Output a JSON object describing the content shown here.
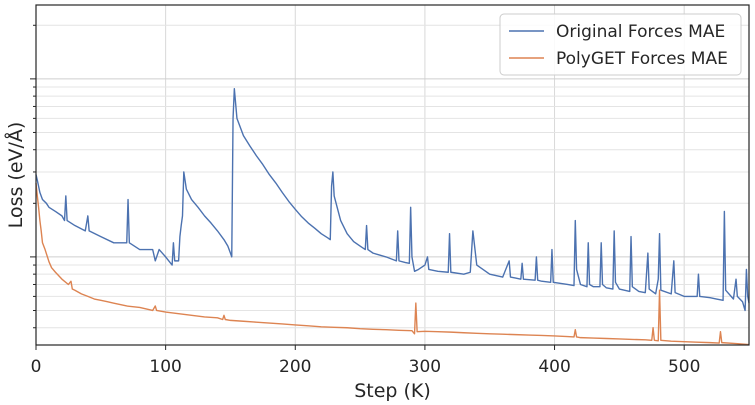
{
  "chart_data": {
    "type": "line",
    "title": "",
    "xlabel": "Step (K)",
    "ylabel": "Loss (eV/Å)",
    "x_ticks": [
      0,
      100,
      200,
      300,
      400,
      500
    ],
    "xlim": [
      0,
      550
    ],
    "y_scale": "log",
    "ylim": [
      0.032,
      2.6
    ],
    "grid": true,
    "legend_position": "top-right",
    "series": [
      {
        "name": "Original Forces MAE",
        "color": "#4c72b0",
        "points": [
          [
            0,
            0.29
          ],
          [
            1,
            0.27
          ],
          [
            3,
            0.23
          ],
          [
            5,
            0.21
          ],
          [
            8,
            0.2
          ],
          [
            10,
            0.19
          ],
          [
            15,
            0.18
          ],
          [
            20,
            0.17
          ],
          [
            22,
            0.16
          ],
          [
            23,
            0.22
          ],
          [
            24,
            0.16
          ],
          [
            30,
            0.15
          ],
          [
            38,
            0.14
          ],
          [
            40,
            0.17
          ],
          [
            41,
            0.14
          ],
          [
            50,
            0.13
          ],
          [
            60,
            0.12
          ],
          [
            70,
            0.12
          ],
          [
            71,
            0.21
          ],
          [
            72,
            0.12
          ],
          [
            80,
            0.11
          ],
          [
            90,
            0.11
          ],
          [
            92,
            0.095
          ],
          [
            95,
            0.11
          ],
          [
            100,
            0.1
          ],
          [
            105,
            0.09
          ],
          [
            106,
            0.12
          ],
          [
            107,
            0.095
          ],
          [
            110,
            0.095
          ],
          [
            111,
            0.13
          ],
          [
            112,
            0.15
          ],
          [
            113,
            0.17
          ],
          [
            114,
            0.3
          ],
          [
            116,
            0.24
          ],
          [
            120,
            0.21
          ],
          [
            125,
            0.19
          ],
          [
            130,
            0.17
          ],
          [
            135,
            0.155
          ],
          [
            140,
            0.14
          ],
          [
            145,
            0.125
          ],
          [
            148,
            0.115
          ],
          [
            150,
            0.105
          ],
          [
            151,
            0.1
          ],
          [
            152,
            0.6
          ],
          [
            153,
            0.88
          ],
          [
            155,
            0.6
          ],
          [
            160,
            0.48
          ],
          [
            165,
            0.42
          ],
          [
            170,
            0.37
          ],
          [
            175,
            0.33
          ],
          [
            180,
            0.29
          ],
          [
            185,
            0.26
          ],
          [
            190,
            0.23
          ],
          [
            195,
            0.205
          ],
          [
            200,
            0.185
          ],
          [
            205,
            0.168
          ],
          [
            210,
            0.155
          ],
          [
            215,
            0.145
          ],
          [
            220,
            0.135
          ],
          [
            225,
            0.128
          ],
          [
            227,
            0.125
          ],
          [
            228,
            0.25
          ],
          [
            229,
            0.3
          ],
          [
            230,
            0.22
          ],
          [
            235,
            0.16
          ],
          [
            240,
            0.135
          ],
          [
            245,
            0.122
          ],
          [
            250,
            0.115
          ],
          [
            254,
            0.11
          ],
          [
            255,
            0.15
          ],
          [
            256,
            0.11
          ],
          [
            260,
            0.105
          ],
          [
            270,
            0.1
          ],
          [
            278,
            0.095
          ],
          [
            279,
            0.14
          ],
          [
            280,
            0.095
          ],
          [
            285,
            0.093
          ],
          [
            288,
            0.092
          ],
          [
            289,
            0.19
          ],
          [
            290,
            0.1
          ],
          [
            292,
            0.083
          ],
          [
            295,
            0.085
          ],
          [
            300,
            0.09
          ],
          [
            302,
            0.1
          ],
          [
            303,
            0.085
          ],
          [
            310,
            0.083
          ],
          [
            318,
            0.082
          ],
          [
            319,
            0.135
          ],
          [
            320,
            0.082
          ],
          [
            330,
            0.08
          ],
          [
            335,
            0.082
          ],
          [
            337,
            0.14
          ],
          [
            340,
            0.09
          ],
          [
            350,
            0.08
          ],
          [
            360,
            0.077
          ],
          [
            365,
            0.095
          ],
          [
            366,
            0.077
          ],
          [
            370,
            0.076
          ],
          [
            374,
            0.075
          ],
          [
            375,
            0.092
          ],
          [
            376,
            0.075
          ],
          [
            385,
            0.074
          ],
          [
            386,
            0.1
          ],
          [
            387,
            0.074
          ],
          [
            390,
            0.073
          ],
          [
            397,
            0.072
          ],
          [
            398,
            0.11
          ],
          [
            399,
            0.072
          ],
          [
            410,
            0.07
          ],
          [
            415,
            0.069
          ],
          [
            416,
            0.16
          ],
          [
            417,
            0.085
          ],
          [
            420,
            0.07
          ],
          [
            425,
            0.068
          ],
          [
            426,
            0.12
          ],
          [
            427,
            0.07
          ],
          [
            430,
            0.068
          ],
          [
            435,
            0.068
          ],
          [
            436,
            0.12
          ],
          [
            437,
            0.07
          ],
          [
            440,
            0.067
          ],
          [
            445,
            0.066
          ],
          [
            446,
            0.14
          ],
          [
            447,
            0.072
          ],
          [
            450,
            0.066
          ],
          [
            458,
            0.064
          ],
          [
            459,
            0.13
          ],
          [
            460,
            0.068
          ],
          [
            465,
            0.064
          ],
          [
            470,
            0.063
          ],
          [
            472,
            0.105
          ],
          [
            473,
            0.066
          ],
          [
            478,
            0.062
          ],
          [
            480,
            0.075
          ],
          [
            481,
            0.135
          ],
          [
            482,
            0.065
          ],
          [
            490,
            0.062
          ],
          [
            492,
            0.095
          ],
          [
            493,
            0.063
          ],
          [
            500,
            0.06
          ],
          [
            510,
            0.06
          ],
          [
            511,
            0.08
          ],
          [
            512,
            0.06
          ],
          [
            520,
            0.059
          ],
          [
            525,
            0.058
          ],
          [
            530,
            0.057
          ],
          [
            531,
            0.18
          ],
          [
            532,
            0.065
          ],
          [
            538,
            0.058
          ],
          [
            540,
            0.075
          ],
          [
            541,
            0.06
          ],
          [
            545,
            0.056
          ],
          [
            547,
            0.05
          ],
          [
            548,
            0.085
          ],
          [
            549,
            0.06
          ],
          [
            550,
            0.055
          ]
        ]
      },
      {
        "name": "PolyGET Forces MAE",
        "color": "#dd8452",
        "points": [
          [
            0,
            0.26
          ],
          [
            1,
            0.22
          ],
          [
            2,
            0.19
          ],
          [
            3,
            0.16
          ],
          [
            4,
            0.14
          ],
          [
            5,
            0.12
          ],
          [
            7,
            0.11
          ],
          [
            10,
            0.094
          ],
          [
            12,
            0.087
          ],
          [
            15,
            0.082
          ],
          [
            20,
            0.075
          ],
          [
            25,
            0.07
          ],
          [
            27,
            0.073
          ],
          [
            28,
            0.066
          ],
          [
            30,
            0.065
          ],
          [
            35,
            0.062
          ],
          [
            40,
            0.06
          ],
          [
            45,
            0.058
          ],
          [
            50,
            0.057
          ],
          [
            55,
            0.056
          ],
          [
            60,
            0.055
          ],
          [
            70,
            0.053
          ],
          [
            80,
            0.052
          ],
          [
            90,
            0.05
          ],
          [
            92,
            0.053
          ],
          [
            93,
            0.05
          ],
          [
            100,
            0.049
          ],
          [
            110,
            0.048
          ],
          [
            120,
            0.047
          ],
          [
            130,
            0.046
          ],
          [
            140,
            0.0455
          ],
          [
            144,
            0.0445
          ],
          [
            145,
            0.047
          ],
          [
            146,
            0.0445
          ],
          [
            150,
            0.044
          ],
          [
            160,
            0.0435
          ],
          [
            170,
            0.043
          ],
          [
            180,
            0.0425
          ],
          [
            190,
            0.042
          ],
          [
            200,
            0.0415
          ],
          [
            210,
            0.041
          ],
          [
            220,
            0.0405
          ],
          [
            230,
            0.0402
          ],
          [
            240,
            0.04
          ],
          [
            250,
            0.0395
          ],
          [
            260,
            0.0392
          ],
          [
            270,
            0.039
          ],
          [
            280,
            0.0387
          ],
          [
            290,
            0.0385
          ],
          [
            292,
            0.037
          ],
          [
            293,
            0.055
          ],
          [
            294,
            0.038
          ],
          [
            300,
            0.0382
          ],
          [
            310,
            0.038
          ],
          [
            320,
            0.0378
          ],
          [
            330,
            0.0375
          ],
          [
            340,
            0.0372
          ],
          [
            350,
            0.037
          ],
          [
            360,
            0.0368
          ],
          [
            370,
            0.0366
          ],
          [
            380,
            0.0364
          ],
          [
            390,
            0.0362
          ],
          [
            400,
            0.036
          ],
          [
            410,
            0.0357
          ],
          [
            415,
            0.0355
          ],
          [
            416,
            0.039
          ],
          [
            417,
            0.0355
          ],
          [
            420,
            0.0352
          ],
          [
            430,
            0.035
          ],
          [
            440,
            0.0348
          ],
          [
            450,
            0.0346
          ],
          [
            460,
            0.0344
          ],
          [
            470,
            0.0342
          ],
          [
            475,
            0.034
          ],
          [
            476,
            0.04
          ],
          [
            477,
            0.034
          ],
          [
            480,
            0.0338
          ],
          [
            481,
            0.065
          ],
          [
            482,
            0.034
          ],
          [
            490,
            0.0336
          ],
          [
            500,
            0.0334
          ],
          [
            510,
            0.0332
          ],
          [
            520,
            0.033
          ],
          [
            527,
            0.0328
          ],
          [
            528,
            0.038
          ],
          [
            529,
            0.033
          ],
          [
            540,
            0.0326
          ],
          [
            550,
            0.0322
          ]
        ]
      }
    ]
  }
}
